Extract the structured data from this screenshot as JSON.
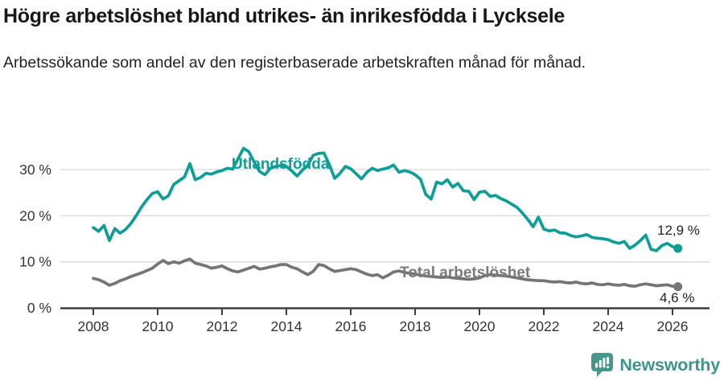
{
  "title": "Högre arbetslöshet bland utrikes- än inrikesfödda i Lycksele",
  "subtitle": "Arbetssökande som andel av den registerbaserade arbetskraften månad för månad.",
  "footer": {
    "brand": "Newsworthy"
  },
  "colors": {
    "accent_teal": "#0f9e96",
    "line_gray": "#757575",
    "label_gray": "#7b7b7b",
    "axis": "#3e3e3e",
    "gridline": "#d9d9d9",
    "tick_text": "#333333",
    "title_text": "#181818",
    "brand_teal": "#3d948a",
    "brand_icon_teal": "#45978b"
  },
  "chart_data": {
    "type": "line",
    "unit": "%",
    "x_start": 2008,
    "x_step": 0.1666667,
    "xlim": [
      2007,
      2027.1
    ],
    "ylim": [
      0,
      35.5
    ],
    "grid": "horizontal",
    "legend_position": "inline-labels",
    "x_ticks": [
      {
        "value": 2008,
        "label": "2008"
      },
      {
        "value": 2010,
        "label": "2010"
      },
      {
        "value": 2012,
        "label": "2012"
      },
      {
        "value": 2014,
        "label": "2014"
      },
      {
        "value": 2016,
        "label": "2016"
      },
      {
        "value": 2018,
        "label": "2018"
      },
      {
        "value": 2020,
        "label": "2020"
      },
      {
        "value": 2022,
        "label": "2022"
      },
      {
        "value": 2024,
        "label": "2024"
      },
      {
        "value": 2026,
        "label": "2026"
      }
    ],
    "y_ticks": [
      {
        "value": 0,
        "label": "0 %",
        "gridline": false
      },
      {
        "value": 10,
        "label": "10 %",
        "gridline": true
      },
      {
        "value": 20,
        "label": "20 %",
        "gridline": true
      },
      {
        "value": 30,
        "label": "30 %",
        "gridline": true
      }
    ],
    "series": [
      {
        "name": "Utlandsfödda",
        "color": "#0f9e96",
        "end_label": "12,9 %",
        "end_value": 12.9,
        "values": [
          17.4,
          16.6,
          17.9,
          14.6,
          17.2,
          16.2,
          17.0,
          18.3,
          20.0,
          21.9,
          23.5,
          24.8,
          25.2,
          23.6,
          24.3,
          26.8,
          27.6,
          28.4,
          31.3,
          27.8,
          28.3,
          29.2,
          29.0,
          29.5,
          29.8,
          30.3,
          30.1,
          32.4,
          34.6,
          33.9,
          31.6,
          29.6,
          28.9,
          30.3,
          30.7,
          30.9,
          30.7,
          29.7,
          28.6,
          29.9,
          31.0,
          33.1,
          33.5,
          33.6,
          31.1,
          28.1,
          29.2,
          30.7,
          30.2,
          29.1,
          28.0,
          29.4,
          30.3,
          29.8,
          30.1,
          30.4,
          31.0,
          29.4,
          29.8,
          29.5,
          28.9,
          27.9,
          24.6,
          23.6,
          27.3,
          26.9,
          27.8,
          26.2,
          27.0,
          25.4,
          25.3,
          23.5,
          25.1,
          25.3,
          24.2,
          24.4,
          23.7,
          23.2,
          22.5,
          21.8,
          20.6,
          19.2,
          17.6,
          19.7,
          17.1,
          16.7,
          16.9,
          16.3,
          16.2,
          15.7,
          15.4,
          15.6,
          15.9,
          15.3,
          15.1,
          15.0,
          14.8,
          14.3,
          14.0,
          14.4,
          12.9,
          13.6,
          14.6,
          15.8,
          12.7,
          12.4,
          13.5,
          14.0,
          13.3,
          12.9
        ]
      },
      {
        "name": "Total arbetslöshet",
        "color": "#757575",
        "end_label": "4,6 %",
        "end_value": 4.6,
        "values": [
          6.4,
          6.1,
          5.6,
          4.9,
          5.3,
          5.9,
          6.3,
          6.8,
          7.2,
          7.6,
          8.1,
          8.6,
          9.5,
          10.3,
          9.6,
          10.0,
          9.7,
          10.2,
          10.6,
          9.7,
          9.4,
          9.1,
          8.6,
          8.8,
          9.1,
          8.5,
          8.0,
          7.8,
          8.2,
          8.6,
          9.0,
          8.4,
          8.6,
          8.9,
          9.1,
          9.4,
          9.4,
          8.8,
          8.5,
          7.8,
          7.2,
          7.9,
          9.4,
          9.2,
          8.5,
          7.9,
          8.1,
          8.3,
          8.5,
          8.3,
          7.8,
          7.3,
          7.0,
          7.2,
          6.5,
          7.1,
          7.8,
          8.0,
          7.7,
          7.5,
          7.3,
          7.1,
          6.9,
          6.8,
          6.7,
          6.6,
          6.7,
          6.5,
          6.4,
          6.3,
          6.2,
          6.3,
          6.5,
          7.0,
          7.2,
          7.1,
          7.0,
          6.9,
          6.7,
          6.5,
          6.3,
          6.1,
          6.0,
          5.9,
          5.9,
          5.7,
          5.6,
          5.7,
          5.5,
          5.4,
          5.6,
          5.3,
          5.2,
          5.4,
          5.1,
          5.0,
          5.2,
          5.0,
          4.9,
          5.1,
          4.8,
          4.7,
          5.0,
          5.2,
          5.0,
          4.8,
          4.9,
          5.0,
          4.7,
          4.6
        ]
      }
    ]
  }
}
